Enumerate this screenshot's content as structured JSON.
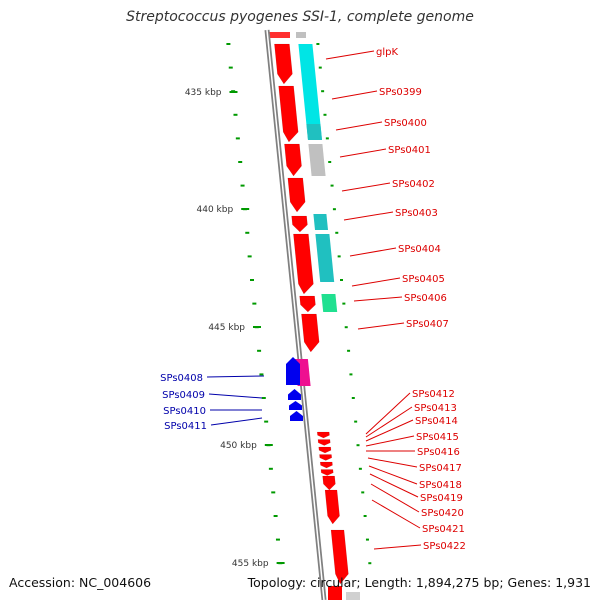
{
  "title": "Streptococcus pyogenes SSI-1, complete genome",
  "footer": {
    "accession": "Accession: NC_004606",
    "summary": "Topology: circular; Length: 1,894,275 bp; Genes: 1,931"
  },
  "colors": {
    "gene_red": "#ff0000",
    "label_red": "#dd0000",
    "gene_blue": "#0000ee",
    "label_blue": "#0000aa",
    "cyan": "#00e5e5",
    "teal": "#20c0c0",
    "gray": "#c0c0c0",
    "green": "#20e090",
    "magenta": "#ee1090",
    "tick": "#009900",
    "backbone": "#808080"
  },
  "scale_labels": [
    "435 kbp",
    "440 kbp",
    "445 kbp",
    "450 kbp",
    "455 kbp"
  ],
  "right_labels": [
    "glpK",
    "SPs0399",
    "SPs0400",
    "SPs0401",
    "SPs0402",
    "SPs0403",
    "SPs0404",
    "SPs0405",
    "SPs0406",
    "SPs0407"
  ],
  "cluster_labels": [
    "SPs0412",
    "SPs0413",
    "SPs0414",
    "SPs0415",
    "SPs0416",
    "SPs0417",
    "SPs0418",
    "SPs0419",
    "SPs0420",
    "SPs0421",
    "SPs0422"
  ],
  "left_labels": [
    "SPs0408",
    "SPs0409",
    "SPs0410",
    "SPs0411"
  ]
}
